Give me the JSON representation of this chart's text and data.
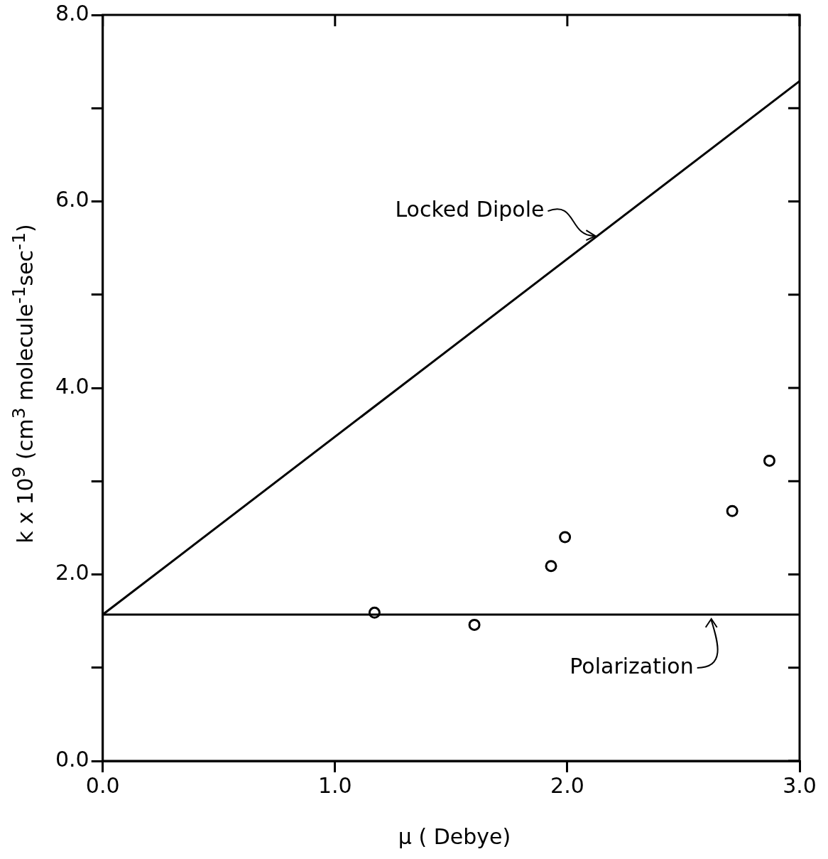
{
  "chart_data": {
    "type": "scatter",
    "xlabel": "μ ( Debye)",
    "ylabel": "k x 10$^{9}$ (cm$^{3}$ molecule$^{-1}$sec$^{-1}$)",
    "xlim": [
      0,
      3
    ],
    "xticks": [
      {
        "value": 0,
        "label": "0.0"
      },
      {
        "value": 1,
        "label": "1.0"
      },
      {
        "value": 2,
        "label": "2.0"
      },
      {
        "value": 3,
        "label": "3.0"
      }
    ],
    "ylim": [
      0,
      8
    ],
    "yticks": [
      {
        "value": 0,
        "label": "0.0"
      },
      {
        "value": 1,
        "label": null
      },
      {
        "value": 2,
        "label": "2.0"
      },
      {
        "value": 3,
        "label": null
      },
      {
        "value": 4,
        "label": "4.0"
      },
      {
        "value": 5,
        "label": null
      },
      {
        "value": 6,
        "label": "6.0"
      },
      {
        "value": 7,
        "label": null
      },
      {
        "value": 8,
        "label": "8.0"
      }
    ],
    "grid": false,
    "legend": false,
    "marker": "circle",
    "line_style": "solid",
    "series": [
      {
        "type": "line",
        "marker": "none",
        "color": "#000000",
        "x": [
          0,
          3
        ],
        "values": [
          1.57,
          7.29
        ]
      },
      {
        "type": "line",
        "marker": "none",
        "color": "#000000",
        "x": [
          0,
          3
        ],
        "values": [
          1.57,
          1.57
        ]
      },
      {
        "color": "#000000",
        "x": [
          1.17,
          1.6,
          1.93,
          1.99,
          2.71,
          2.87
        ],
        "values": [
          1.59,
          1.46,
          2.09,
          2.4,
          2.68,
          3.22
        ]
      }
    ],
    "annotations": [
      {
        "text": "Locked Dipole",
        "x": 2.13,
        "y": 5.63
      },
      {
        "text": "Polarization",
        "x": 2.62,
        "y": 1.57
      }
    ]
  }
}
